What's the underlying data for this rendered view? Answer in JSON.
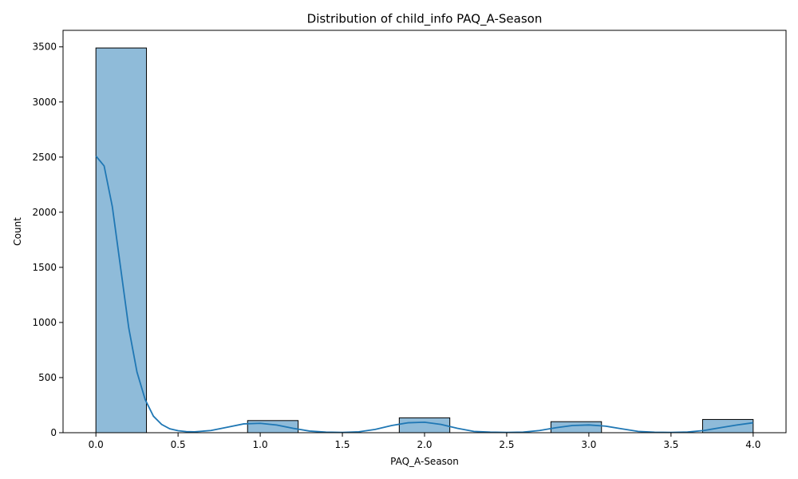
{
  "chart_data": {
    "type": "bar",
    "title": "Distribution of child_info PAQ_A-Season",
    "xlabel": "PAQ_A-Season",
    "ylabel": "Count",
    "xlim": [
      -0.2,
      4.2
    ],
    "ylim": [
      0,
      3650
    ],
    "x_ticks": [
      0.0,
      0.5,
      1.0,
      1.5,
      2.0,
      2.5,
      3.0,
      3.5,
      4.0
    ],
    "x_tick_labels": [
      "0.0",
      "0.5",
      "1.0",
      "1.5",
      "2.0",
      "2.5",
      "3.0",
      "3.5",
      "4.0"
    ],
    "y_ticks": [
      0,
      500,
      1000,
      1500,
      2000,
      2500,
      3000,
      3500
    ],
    "y_tick_labels": [
      "0",
      "500",
      "1000",
      "1500",
      "2000",
      "2500",
      "3000",
      "3500"
    ],
    "grid": false,
    "legend": "none",
    "bin_edges": [
      0.0,
      0.3077,
      0.6154,
      0.9231,
      1.2308,
      1.5385,
      1.8462,
      2.1538,
      2.4615,
      2.7692,
      3.0769,
      3.3846,
      3.6923,
      4.0
    ],
    "values": [
      3490,
      0,
      0,
      110,
      0,
      0,
      135,
      0,
      0,
      100,
      0,
      0,
      120
    ],
    "kde": {
      "x": [
        0.0,
        0.05,
        0.1,
        0.15,
        0.2,
        0.25,
        0.3,
        0.35,
        0.4,
        0.45,
        0.5,
        0.55,
        0.6,
        0.7,
        0.8,
        0.9,
        1.0,
        1.1,
        1.2,
        1.3,
        1.4,
        1.5,
        1.6,
        1.7,
        1.8,
        1.9,
        2.0,
        2.1,
        2.2,
        2.3,
        2.4,
        2.5,
        2.6,
        2.7,
        2.8,
        2.9,
        3.0,
        3.1,
        3.2,
        3.3,
        3.4,
        3.5,
        3.6,
        3.7,
        3.8,
        3.9,
        4.0
      ],
      "y": [
        2510,
        2420,
        2050,
        1500,
        950,
        550,
        300,
        150,
        75,
        35,
        18,
        10,
        8,
        20,
        50,
        80,
        85,
        70,
        40,
        15,
        5,
        3,
        8,
        30,
        65,
        90,
        95,
        75,
        40,
        12,
        5,
        3,
        5,
        20,
        45,
        65,
        70,
        60,
        35,
        12,
        4,
        3,
        6,
        20,
        45,
        70,
        90
      ]
    },
    "colors": {
      "bar_fill": "#8fbbd9",
      "bar_edge": "#000000",
      "kde_line": "#1f77b4"
    }
  }
}
